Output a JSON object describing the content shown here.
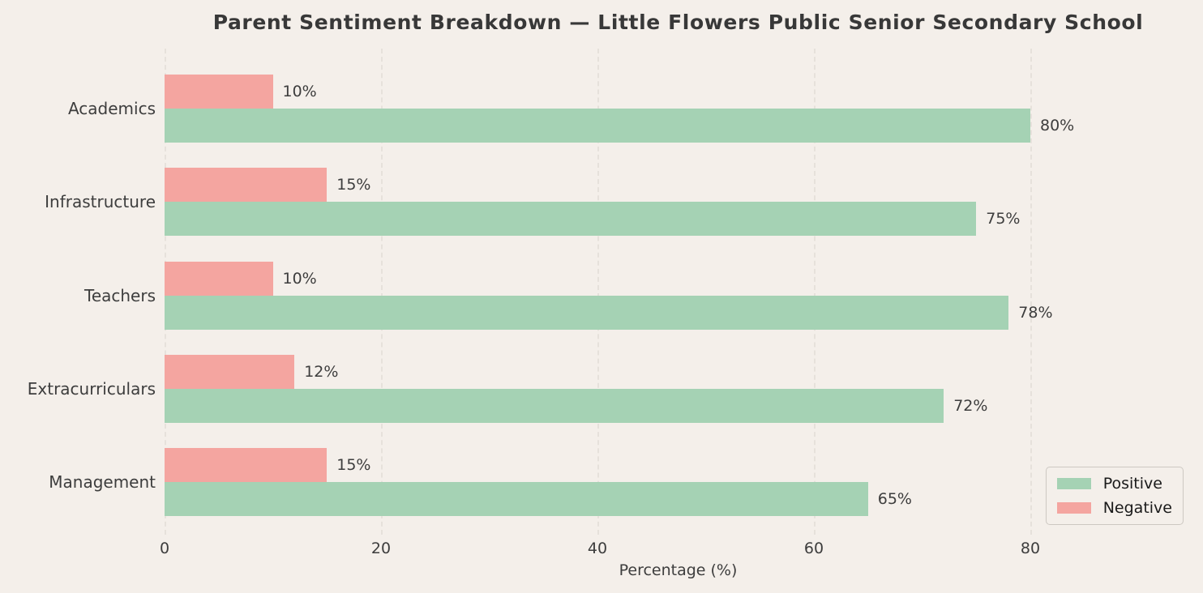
{
  "title": "Parent Sentiment Breakdown — Little Flowers Public Senior Secondary School",
  "chart_data": {
    "type": "bar",
    "orientation": "horizontal",
    "categories": [
      "Academics",
      "Infrastructure",
      "Teachers",
      "Extracurriculars",
      "Management"
    ],
    "series": [
      {
        "name": "Positive",
        "color": "#a5d2b4",
        "values": [
          80,
          75,
          78,
          72,
          65
        ]
      },
      {
        "name": "Negative",
        "color": "#f4a5a0",
        "values": [
          10,
          15,
          10,
          12,
          15
        ]
      }
    ],
    "value_suffix": "%",
    "xlabel": "Percentage (%)",
    "x_ticks": [
      0,
      20,
      40,
      60,
      80
    ],
    "xlim": [
      0,
      95
    ],
    "grid": "vertical-dashed-behind-bars",
    "legend": {
      "position": "lower-right",
      "entries": [
        "Positive",
        "Negative"
      ]
    }
  },
  "style": {
    "background": "#f4efea",
    "gridline_color": "#e6e1db",
    "text_color": "#3d3d3d",
    "title_color": "#383838",
    "legend_border_color": "#cdc8c2"
  }
}
